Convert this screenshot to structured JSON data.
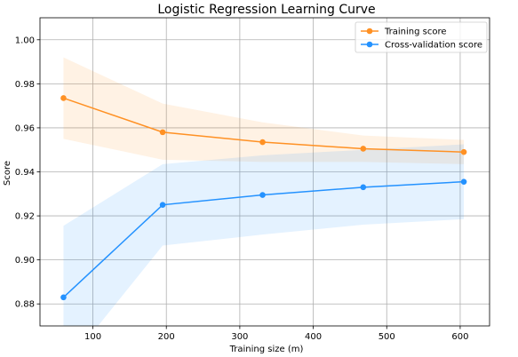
{
  "chart_data": {
    "type": "line",
    "title": "Logistic Regression Learning Curve",
    "xlabel": "Training size (m)",
    "ylabel": "Score",
    "xlim": [
      28,
      640
    ],
    "ylim": [
      0.87,
      1.01
    ],
    "xticks": [
      100,
      200,
      300,
      400,
      500,
      600
    ],
    "yticks": [
      0.88,
      0.9,
      0.92,
      0.94,
      0.96,
      0.98,
      1.0
    ],
    "ytick_labels": [
      "0.88",
      "0.90",
      "0.92",
      "0.94",
      "0.96",
      "0.98",
      "1.00"
    ],
    "grid": true,
    "legend_position": "top-right",
    "x": [
      60,
      195,
      331,
      468,
      605
    ],
    "series": [
      {
        "name": "Training score",
        "color": "#ff9124",
        "values": [
          0.9735,
          0.958,
          0.9535,
          0.9505,
          0.949
        ],
        "band_lower": [
          0.955,
          0.9455,
          0.9445,
          0.9445,
          0.9435
        ],
        "band_upper": [
          0.992,
          0.971,
          0.9625,
          0.9565,
          0.9545
        ]
      },
      {
        "name": "Cross-validation score",
        "color": "#2492ff",
        "values": [
          0.883,
          0.925,
          0.9295,
          0.933,
          0.9355
        ],
        "band_lower": [
          0.8505,
          0.9065,
          0.9115,
          0.916,
          0.9185
        ],
        "band_upper": [
          0.9155,
          0.9435,
          0.9475,
          0.95,
          0.9525
        ]
      }
    ]
  }
}
